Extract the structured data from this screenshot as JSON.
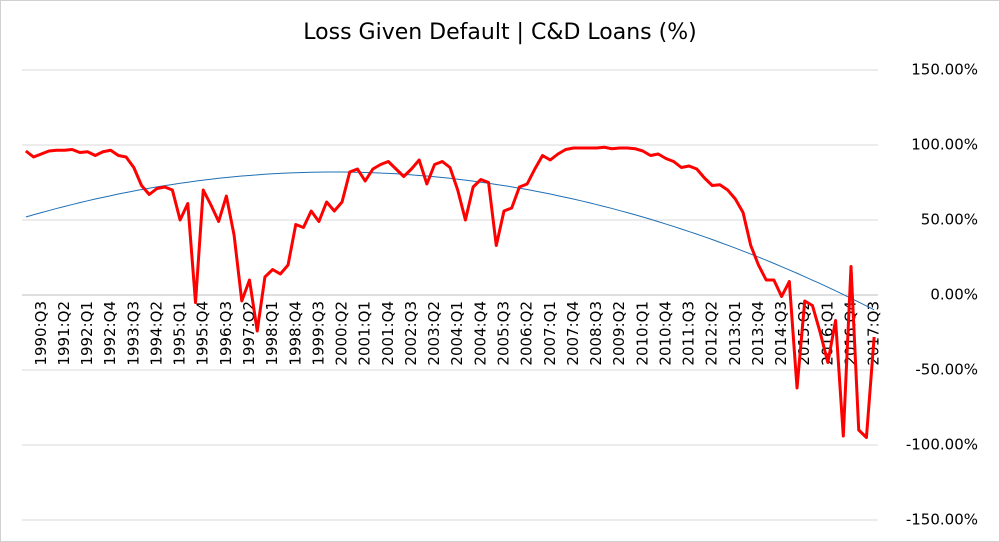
{
  "chart_data": {
    "type": "line",
    "title": "Loss Given Default | C&D Loans (%)",
    "categories": [
      null,
      null,
      "1990:Q3",
      null,
      null,
      "1991:Q2",
      null,
      null,
      "1992:Q1",
      null,
      null,
      "1992:Q4",
      null,
      null,
      "1993:Q3",
      null,
      null,
      "1994:Q2",
      null,
      null,
      "1995:Q1",
      null,
      null,
      "1995:Q4",
      null,
      null,
      "1996:Q3",
      null,
      null,
      "1997:Q2",
      null,
      null,
      "1998:Q1",
      null,
      null,
      "1998:Q4",
      null,
      null,
      "1999:Q3",
      null,
      null,
      "2000:Q2",
      null,
      null,
      "2001:Q1",
      null,
      null,
      "2001:Q4",
      null,
      null,
      "2002:Q3",
      null,
      null,
      "2003:Q2",
      null,
      null,
      "2004:Q1",
      null,
      null,
      "2004:Q4",
      null,
      null,
      "2005:Q3",
      null,
      null,
      "2006:Q2",
      null,
      null,
      "2007:Q1",
      null,
      null,
      "2007:Q4",
      null,
      null,
      "2008:Q3",
      null,
      null,
      "2009:Q2",
      null,
      null,
      "2010:Q1",
      null,
      null,
      "2010:Q4",
      null,
      null,
      "2011:Q3",
      null,
      null,
      "2012:Q2",
      null,
      null,
      "2013:Q1",
      null,
      null,
      "2013:Q4",
      null,
      null,
      "2014:Q3",
      null,
      null,
      "2015:Q2",
      null,
      null,
      "2016:Q1",
      null,
      null,
      "2016:Q4",
      null,
      null,
      "2017:Q3"
    ],
    "series": [
      {
        "color": "#ff0000",
        "values": [
          96,
          92,
          94,
          96,
          96.5,
          96.5,
          97,
          95,
          95.5,
          93,
          95.5,
          96.5,
          93,
          92,
          85,
          73,
          67,
          71,
          72,
          70,
          50,
          61,
          -5,
          70,
          60,
          49,
          66,
          40,
          -4,
          10,
          -24,
          12,
          17,
          14,
          20,
          47,
          45,
          56,
          49,
          62,
          56,
          62,
          82,
          84,
          76,
          84,
          87,
          89,
          84,
          79,
          84,
          90,
          74,
          87,
          89,
          85,
          70,
          50,
          72,
          77,
          75,
          33,
          56,
          58,
          72,
          74,
          84,
          93,
          90,
          94,
          97,
          98,
          98,
          98,
          98,
          98.5,
          97.5,
          98,
          98,
          97.5,
          96,
          93,
          94,
          91,
          89,
          85,
          86,
          84,
          78,
          73,
          73.5,
          70,
          64,
          55,
          33,
          20,
          10,
          10,
          -1,
          9,
          -62,
          -4,
          -7,
          -25,
          -45,
          -17,
          -94,
          19,
          -90,
          -95,
          -28
        ]
      },
      {
        "color": "#1f6fb4",
        "values": [
          52.0,
          53.5,
          54.9,
          56.3,
          57.7,
          59.0,
          60.3,
          61.6,
          62.8,
          64.0,
          65.1,
          66.2,
          67.3,
          68.3,
          69.3,
          70.3,
          71.2,
          72.1,
          72.9,
          73.7,
          74.5,
          75.2,
          75.9,
          76.6,
          77.2,
          77.8,
          78.3,
          78.8,
          79.3,
          79.7,
          80.1,
          80.5,
          80.8,
          81.1,
          81.3,
          81.5,
          81.7,
          81.8,
          81.9,
          82.0,
          82.0,
          82.0,
          81.9,
          81.8,
          81.7,
          81.5,
          81.3,
          81.1,
          80.8,
          80.5,
          80.1,
          79.7,
          79.3,
          78.8,
          78.3,
          77.8,
          77.2,
          76.6,
          75.9,
          75.2,
          74.5,
          73.7,
          72.9,
          72.1,
          71.2,
          70.3,
          69.3,
          68.3,
          67.3,
          66.2,
          65.1,
          64.0,
          62.8,
          61.6,
          60.3,
          59.0,
          57.7,
          56.3,
          54.9,
          53.5,
          52.0,
          50.5,
          48.9,
          47.3,
          45.7,
          44.0,
          42.3,
          40.6,
          38.8,
          37.0,
          35.1,
          33.2,
          31.3,
          29.3,
          27.3,
          25.3,
          23.2,
          21.1,
          18.9,
          16.7,
          14.5,
          12.2,
          9.9,
          7.6,
          5.2,
          2.8,
          0.3,
          -2.2,
          -4.7,
          -7.3,
          -9.9
        ]
      }
    ],
    "ylim": [
      -150,
      150
    ],
    "yticks": [
      {
        "value": -150,
        "label": "-150.00%"
      },
      {
        "value": -100,
        "label": "-100.00%"
      },
      {
        "value": -50,
        "label": "-50.00%"
      },
      {
        "value": 0,
        "label": "0.00%"
      },
      {
        "value": 50,
        "label": "50.00%"
      },
      {
        "value": 100,
        "label": "100.00%"
      },
      {
        "value": 150,
        "label": "150.00%"
      }
    ],
    "grid": true
  }
}
